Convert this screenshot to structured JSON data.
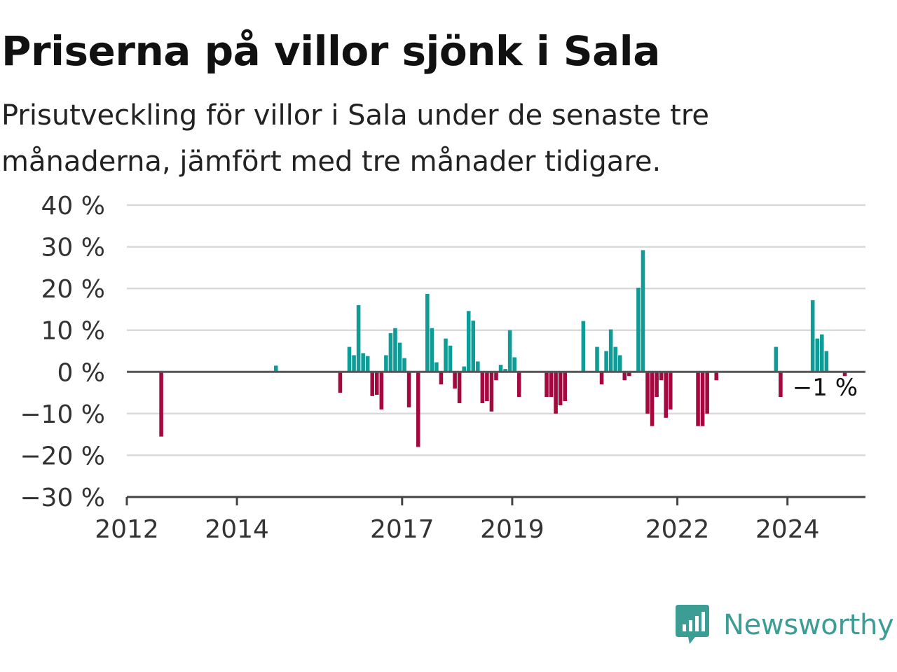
{
  "title": "Priserna på villor sjönk i Sala",
  "subtitle": "Prisutveckling för villor i Sala under de senaste tre månaderna, jämfört med tre månader tidigare.",
  "brand": {
    "name": "Newsworthy",
    "color": "#3c9d95",
    "icon": "bar-chart-speech-bubble-icon"
  },
  "colors": {
    "positive": "#0f9c96",
    "negative": "#a3093f",
    "grid": "#d9d9d9",
    "zero_line": "#555555",
    "axis_text": "#333333"
  },
  "chart_data": {
    "type": "bar",
    "title": "Priserna på villor sjönk i Sala",
    "xlabel": "",
    "ylabel": "",
    "ylim": [
      -30,
      40
    ],
    "y_ticks": [
      40,
      30,
      20,
      10,
      0,
      -10,
      -20,
      -30
    ],
    "y_tick_labels": [
      "40 %",
      "30 %",
      "20 %",
      "10 %",
      "0 %",
      "−10 %",
      "−20 %",
      "−30 %"
    ],
    "x_range": [
      "2012-01",
      "2025-06"
    ],
    "x_ticks": [
      "2012",
      "2014",
      "2017",
      "2019",
      "2022",
      "2024"
    ],
    "grid": true,
    "annotation": {
      "text": "−1 %",
      "date": "2025-01"
    },
    "series": [
      {
        "dates": [
          "2012-08",
          "2014-09",
          "2015-11",
          "2016-01",
          "2016-02",
          "2016-03",
          "2016-04",
          "2016-05",
          "2016-06",
          "2016-07",
          "2016-08",
          "2016-09",
          "2016-10",
          "2016-11",
          "2016-12",
          "2017-01",
          "2017-02",
          "2017-04",
          "2017-06",
          "2017-07",
          "2017-08",
          "2017-09",
          "2017-10",
          "2017-11",
          "2017-12",
          "2018-01",
          "2018-02",
          "2018-03",
          "2018-04",
          "2018-05",
          "2018-06",
          "2018-07",
          "2018-08",
          "2018-09",
          "2018-10",
          "2018-11",
          "2018-12",
          "2019-01",
          "2019-02",
          "2019-08",
          "2019-09",
          "2019-10",
          "2019-11",
          "2019-12",
          "2020-04",
          "2020-07",
          "2020-08",
          "2020-09",
          "2020-10",
          "2020-11",
          "2020-12",
          "2021-01",
          "2021-02",
          "2021-04",
          "2021-05",
          "2021-06",
          "2021-07",
          "2021-08",
          "2021-09",
          "2021-10",
          "2021-11",
          "2022-05",
          "2022-06",
          "2022-07",
          "2022-09",
          "2023-10",
          "2023-11",
          "2024-06",
          "2024-07",
          "2024-08",
          "2024-09",
          "2025-01"
        ],
        "values": [
          -15.5,
          1.5,
          -5,
          6,
          4,
          16,
          4.5,
          3.8,
          -5.8,
          -5.5,
          -9,
          4,
          9.3,
          10.5,
          7,
          3.3,
          -8.5,
          -18,
          18.7,
          10.5,
          2.3,
          -3,
          8,
          6.3,
          -4,
          -7.5,
          1.3,
          14.6,
          12.3,
          2.5,
          -7.5,
          -7,
          -9.5,
          -2,
          1.7,
          0.7,
          10,
          3.5,
          -6,
          -6,
          -6,
          -10,
          -8,
          -7,
          12.2,
          6,
          -3,
          5,
          10.2,
          6,
          4,
          -2,
          -1,
          20.2,
          29.2,
          -10,
          -13,
          -6,
          -2,
          -11,
          -9,
          -13,
          -13,
          -10,
          -2,
          6,
          -6,
          17.2,
          8,
          9,
          5,
          -1
        ]
      }
    ]
  }
}
